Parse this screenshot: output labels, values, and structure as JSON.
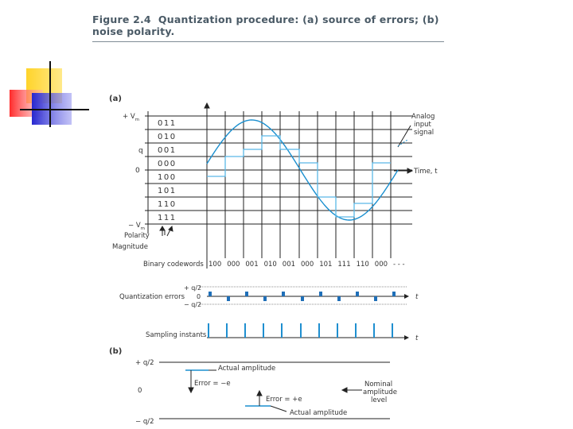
{
  "figure": {
    "number": "Figure 2.4",
    "caption": "Quantization procedure: (a) source of errors; (b) noise polarity."
  },
  "panel_a": {
    "label": "(a)",
    "v_pos": "+ V",
    "v_neg": "− V",
    "v_sub": "m",
    "q_label": "q",
    "zero_label": "0",
    "codes": [
      "011",
      "010",
      "001",
      "000",
      "100",
      "101",
      "110",
      "111"
    ],
    "polarity_label": "Polarity",
    "magnitude_label": "Magnitude",
    "analog_label": [
      "Analog",
      "input",
      "signal"
    ],
    "time_label": "Time, t",
    "codewords_label": "Binary codewords",
    "codewords": [
      "100",
      "000",
      "001",
      "010",
      "001",
      "000",
      "101",
      "111",
      "110",
      "000",
      "- - -"
    ],
    "qerr_label": "Quantization errors",
    "qerr_plus": "+ q/2",
    "qerr_zero": "0",
    "qerr_minus": "− q/2",
    "qerr_t": "t",
    "sampling_label": "Sampling instants",
    "sampling_t": "t",
    "signal_color": "#1a8fcf",
    "staircase_color": "#5ab8e6"
  },
  "panel_b": {
    "label": "(b)",
    "plus_label": "+ q/2",
    "zero_label": "0",
    "minus_label": "− q/2",
    "actual_top": "Actual amplitude",
    "error_neg": "Error = −e",
    "error_pos": "Error = +e",
    "nominal": [
      "Nominal",
      "amplitude",
      "level"
    ],
    "actual_bottom": "Actual amplitude"
  },
  "decoration": {
    "yellow": "#ffd42a",
    "red": "#ff3b3b",
    "blue": "#2f2fd6"
  }
}
